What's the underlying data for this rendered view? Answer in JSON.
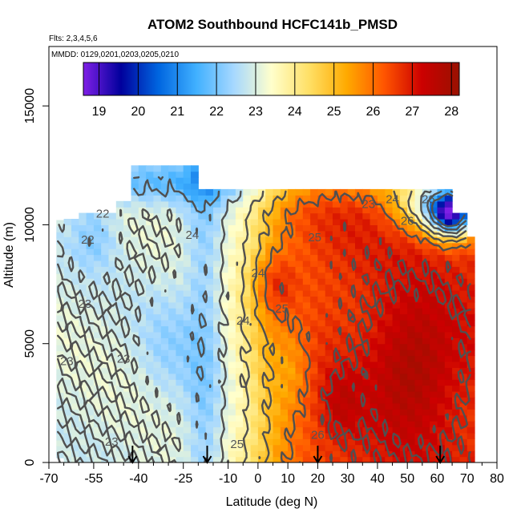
{
  "chart_data": {
    "type": "heatmap",
    "title": "ATOM2 Southbound HCFC141b_PMSD",
    "flights_label": "Flts: 2,3,4,5,6",
    "dates_label": "MMDD: 0129,0201,0203,0205,0210",
    "xlabel": "Latitude (deg N)",
    "ylabel": "Altitude (m)",
    "xlim": [
      -70,
      80
    ],
    "ylim": [
      0,
      17500
    ],
    "x_ticks": [
      -70,
      -55,
      -40,
      -25,
      -10,
      0,
      10,
      20,
      30,
      40,
      50,
      60,
      70,
      80
    ],
    "x_tick_labels": [
      "-70",
      "-55",
      "-40",
      "-25",
      "-10",
      "0",
      "10",
      "20",
      "30",
      "40",
      "50",
      "60",
      "70",
      "80"
    ],
    "y_ticks": [
      0,
      5000,
      10000,
      15000
    ],
    "y_tick_labels": [
      "0",
      "5000",
      "10000",
      "15000"
    ],
    "colorbar": {
      "range": [
        18.6,
        28.2
      ],
      "ticks": [
        19,
        20,
        21,
        22,
        23,
        24,
        25,
        26,
        27,
        28
      ],
      "tick_labels": [
        "19",
        "20",
        "21",
        "22",
        "23",
        "24",
        "25",
        "26",
        "27",
        "28"
      ],
      "colors": [
        "#7f1fe6",
        "#00009c",
        "#0066e0",
        "#40b0ff",
        "#a6d8ff",
        "#ffffcc",
        "#ffe066",
        "#ffaa00",
        "#ff5500",
        "#cc0000",
        "#991100"
      ]
    },
    "contour_labels": [
      "22",
      "22",
      "23",
      "23",
      "23",
      "23",
      "24",
      "24",
      "24",
      "25",
      "25",
      "25",
      "26",
      "26",
      "26",
      "23",
      "24"
    ],
    "flight_markers_lat": [
      -42,
      -17,
      20,
      61
    ],
    "field_summary": [
      {
        "lat_range": [
          -68,
          -20
        ],
        "alt_range": [
          0,
          11000
        ],
        "approx_value": 23
      },
      {
        "lat_range": [
          -25,
          -10
        ],
        "alt_range": [
          0,
          12000
        ],
        "approx_value": 22.5
      },
      {
        "lat_range": [
          -10,
          15
        ],
        "alt_range": [
          0,
          12000
        ],
        "approx_value": 24.5
      },
      {
        "lat_range": [
          0,
          10
        ],
        "alt_range": [
          6000,
          9000
        ],
        "approx_value": 26
      },
      {
        "lat_range": [
          20,
          70
        ],
        "alt_range": [
          0,
          9000
        ],
        "approx_value": 26.5
      },
      {
        "lat_range": [
          45,
          65
        ],
        "alt_range": [
          1000,
          5000
        ],
        "approx_value": 27.5
      },
      {
        "lat_range": [
          50,
          70
        ],
        "alt_range": [
          9500,
          11000
        ],
        "approx_value": 20
      }
    ]
  }
}
